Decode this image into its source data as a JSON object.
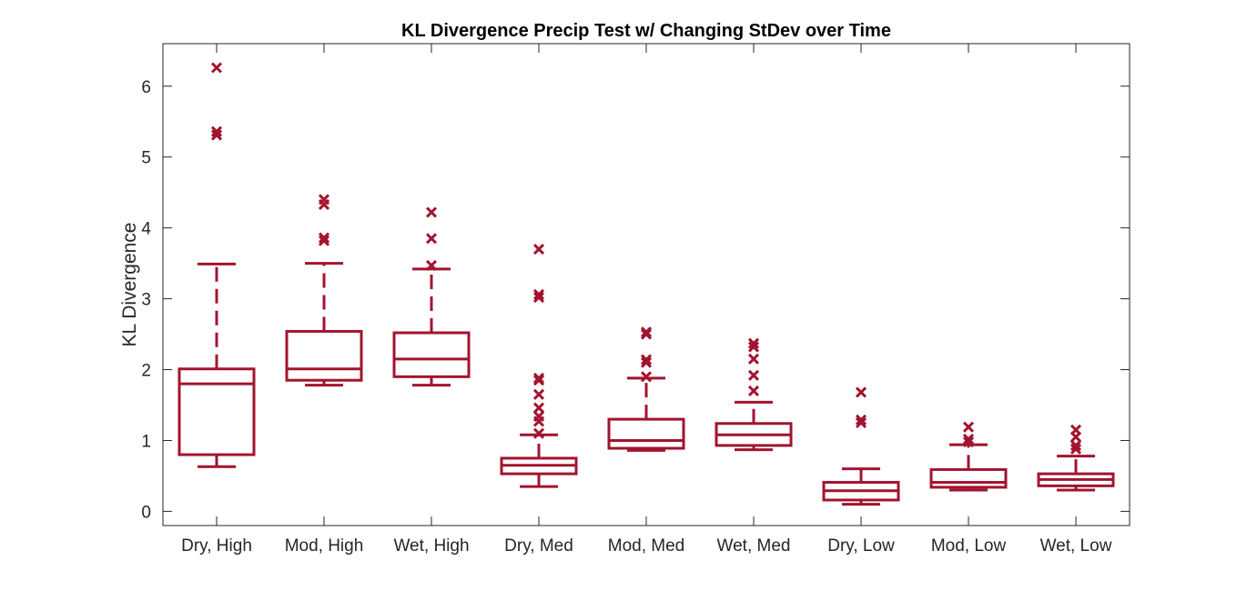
{
  "chart_data": {
    "type": "box",
    "title": "KL Divergence Precip Test w/ Changing StDev over Time",
    "xlabel": "",
    "ylabel": "KL Divergence",
    "ylim": [
      -0.2,
      6.6
    ],
    "yticks": [
      0,
      1,
      2,
      3,
      4,
      5,
      6
    ],
    "grid": false,
    "color": "#a2142f",
    "categories": [
      "Dry, High",
      "Mod, High",
      "Wet, High",
      "Dry, Med",
      "Mod, Med",
      "Wet, Med",
      "Dry, Low",
      "Mod, Low",
      "Wet, Low"
    ],
    "boxes": [
      {
        "category": "Dry, High",
        "whisker_low": 0.63,
        "q1": 0.8,
        "median": 1.8,
        "q3": 2.01,
        "whisker_high": 3.49,
        "outliers": [
          5.31,
          5.36,
          6.26
        ]
      },
      {
        "category": "Mod, High",
        "whisker_low": 1.78,
        "q1": 1.85,
        "median": 2.01,
        "q3": 2.54,
        "whisker_high": 3.5,
        "outliers": [
          3.82,
          3.86,
          4.33,
          4.4
        ]
      },
      {
        "category": "Wet, High",
        "whisker_low": 1.78,
        "q1": 1.9,
        "median": 2.15,
        "q3": 2.52,
        "whisker_high": 3.42,
        "outliers": [
          3.47,
          3.85,
          4.22
        ]
      },
      {
        "category": "Dry, Med",
        "whisker_low": 0.35,
        "q1": 0.53,
        "median": 0.65,
        "q3": 0.75,
        "whisker_high": 1.08,
        "outliers": [
          1.1,
          1.27,
          1.34,
          1.46,
          1.65,
          1.85,
          1.88,
          3.02,
          3.06,
          3.7
        ]
      },
      {
        "category": "Mod, Med",
        "whisker_low": 0.86,
        "q1": 0.89,
        "median": 1.0,
        "q3": 1.3,
        "whisker_high": 1.88,
        "outliers": [
          1.9,
          2.1,
          2.14,
          2.5,
          2.53
        ]
      },
      {
        "category": "Wet, Med",
        "whisker_low": 0.87,
        "q1": 0.93,
        "median": 1.08,
        "q3": 1.24,
        "whisker_high": 1.54,
        "outliers": [
          1.7,
          1.92,
          2.15,
          2.32,
          2.37
        ]
      },
      {
        "category": "Dry, Low",
        "whisker_low": 0.1,
        "q1": 0.16,
        "median": 0.29,
        "q3": 0.41,
        "whisker_high": 0.6,
        "outliers": [
          1.25,
          1.29,
          1.68
        ]
      },
      {
        "category": "Mod, Low",
        "whisker_low": 0.3,
        "q1": 0.34,
        "median": 0.41,
        "q3": 0.59,
        "whisker_high": 0.94,
        "outliers": [
          0.98,
          1.02,
          1.19
        ]
      },
      {
        "category": "Wet, Low",
        "whisker_low": 0.3,
        "q1": 0.36,
        "median": 0.45,
        "q3": 0.53,
        "whisker_high": 0.78,
        "outliers": [
          0.88,
          0.93,
          1.05,
          1.15
        ]
      }
    ]
  }
}
